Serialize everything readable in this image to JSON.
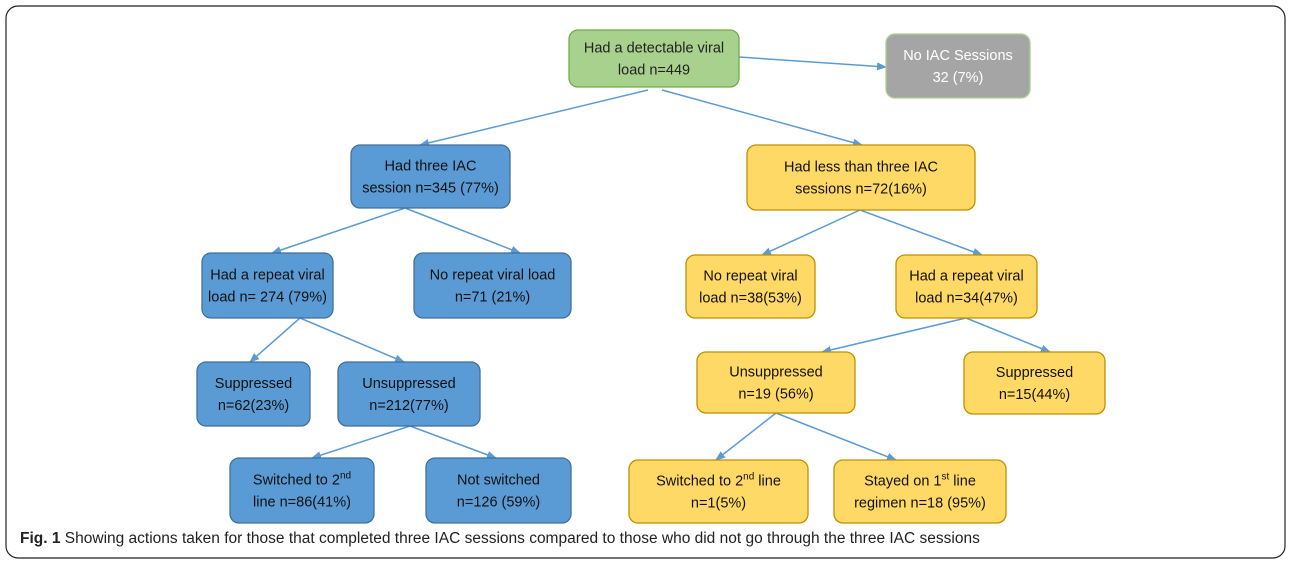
{
  "nodes": [
    {
      "lines": [
        [
          {
            "t": "Had a detectable viral"
          }
        ],
        [
          {
            "t": "load n=449"
          }
        ]
      ]
    },
    {
      "lines": [
        [
          {
            "t": "No IAC Sessions"
          }
        ],
        [
          {
            "t": "32 (7%)"
          }
        ]
      ]
    },
    {
      "lines": [
        [
          {
            "t": "Had three IAC"
          }
        ],
        [
          {
            "t": "session n=345 (77%)"
          }
        ]
      ]
    },
    {
      "lines": [
        [
          {
            "t": "Had less than three IAC"
          }
        ],
        [
          {
            "t": "sessions n=72(16%)"
          }
        ]
      ]
    },
    {
      "lines": [
        [
          {
            "t": "Had a repeat viral"
          }
        ],
        [
          {
            "t": "load n= 274 (79%)"
          }
        ]
      ]
    },
    {
      "lines": [
        [
          {
            "t": "No repeat viral load"
          }
        ],
        [
          {
            "t": "n=71 (21%)"
          }
        ]
      ]
    },
    {
      "lines": [
        [
          {
            "t": "No repeat viral"
          }
        ],
        [
          {
            "t": "load n=38(53%)"
          }
        ]
      ]
    },
    {
      "lines": [
        [
          {
            "t": "Had a repeat viral"
          }
        ],
        [
          {
            "t": "load n=34(47%)"
          }
        ]
      ]
    },
    {
      "lines": [
        [
          {
            "t": "Suppressed"
          }
        ],
        [
          {
            "t": "n=62(23%)"
          }
        ]
      ]
    },
    {
      "lines": [
        [
          {
            "t": "Unsuppressed"
          }
        ],
        [
          {
            "t": "n=212(77%)"
          }
        ]
      ]
    },
    {
      "lines": [
        [
          {
            "t": "Unsuppressed"
          }
        ],
        [
          {
            "t": "n=19 (56%)"
          }
        ]
      ]
    },
    {
      "lines": [
        [
          {
            "t": "Suppressed"
          }
        ],
        [
          {
            "t": "n=15(44%)"
          }
        ]
      ]
    },
    {
      "lines": [
        [
          {
            "t": "Switched to 2"
          },
          {
            "sup": "nd"
          }
        ],
        [
          {
            "t": "line n=86(41%)"
          }
        ]
      ]
    },
    {
      "lines": [
        [
          {
            "t": "Not switched"
          }
        ],
        [
          {
            "t": "n=126 (59%)"
          }
        ]
      ]
    },
    {
      "lines": [
        [
          {
            "t": "Switched to 2"
          },
          {
            "sup": "nd"
          },
          {
            "t": " line"
          }
        ],
        [
          {
            "t": "n=1(5%)"
          }
        ]
      ]
    },
    {
      "lines": [
        [
          {
            "t": "Stayed on 1"
          },
          {
            "sup": "st"
          },
          {
            "t": " line"
          }
        ],
        [
          {
            "t": "regimen n=18 (95%)"
          }
        ]
      ]
    }
  ],
  "caption": {
    "label": "Fig. 1",
    "text": "Showing actions taken for those that completed three IAC sessions compared to those who did not go through the three IAC sessions"
  }
}
